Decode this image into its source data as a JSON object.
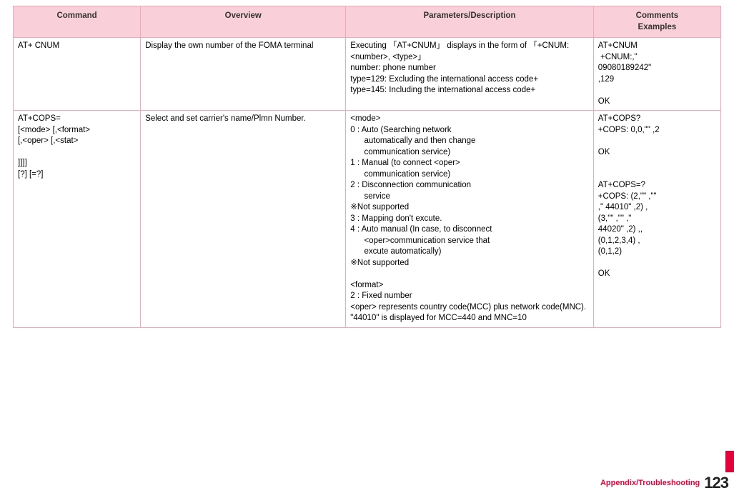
{
  "headers": {
    "command": "Command",
    "overview": "Overview",
    "params": "Parameters/Description",
    "comments": "Comments\nExamples"
  },
  "rows": [
    {
      "command": "AT+ CNUM",
      "overview": "Display the own number of the FOMA terminal",
      "params": "Executing 「AT+CNUM」 displays in the form of 「+CNUM: <number>, <type>」\nnumber: phone number\ntype=129: Excluding the international access code+\ntype=145: Including the international access code+",
      "comments": "AT+CNUM\n +CNUM:,\"\n09080189242\"\n,129\n\nOK"
    },
    {
      "command": "AT+COPS=\n[<mode> [,<format>\n[,<oper> [,<stat>\n\n]]]]\n[?] [=?]",
      "overview": "Select and set carrier's name/Plmn Number.",
      "params": "<mode>\n0 : Auto (Searching network\n      automatically and then change\n      communication service)\n1 : Manual (to connect <oper>\n      communication service)\n2 : Disconnection communication\n      service\n※Not supported\n3 : Mapping don't excute.\n4 : Auto manual (In case, to disconnect\n      <oper>communication service that\n      excute automatically)\n※Not supported\n\n<format>\n2 : Fixed number\n<oper> represents country code(MCC) plus network code(MNC).\n\"44010\" is displayed for MCC=440 and MNC=10",
      "comments": "AT+COPS?\n+COPS: 0,0,\"\" ,2\n\nOK\n\n\nAT+COPS=?\n+COPS: (2,\"\" ,\"\"\n,\" 44010\" ,2) ,\n(3,\"\" ,\"\" ,\"\n44020\" ,2) ,,\n(0,1,2,3,4) ,\n(0,1,2)\n\nOK"
    }
  ],
  "footer": {
    "section": "Appendix/Troubleshooting",
    "page": "123"
  }
}
